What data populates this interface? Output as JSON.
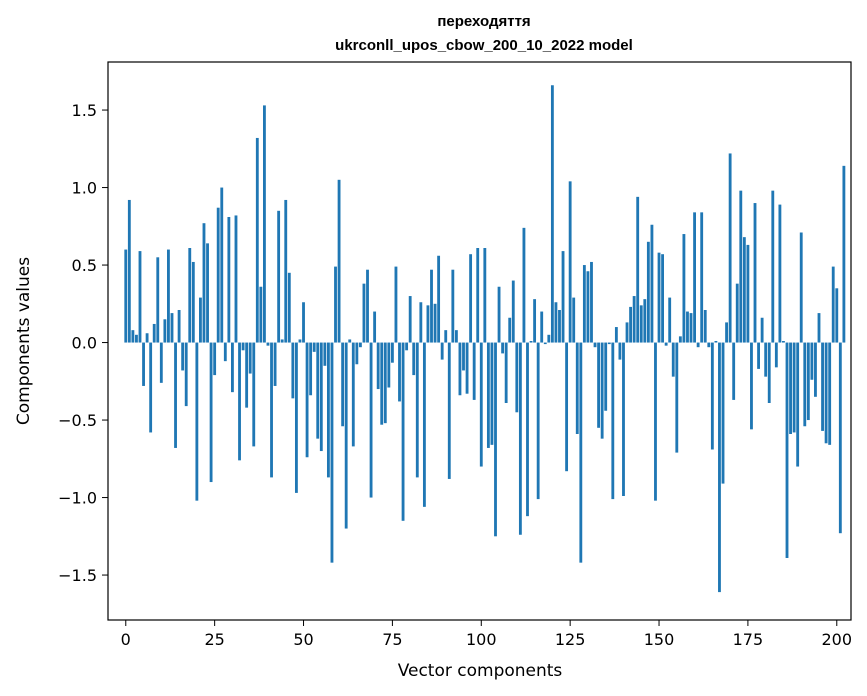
{
  "chart_data": {
    "type": "bar",
    "title_lines": [
      "переходяття",
      "ukrconll_upos_cbow_200_10_2022 model"
    ],
    "xlabel": "Vector components",
    "ylabel": "Components values",
    "xlim": [
      -5,
      204
    ],
    "ylim": [
      -1.79,
      1.81
    ],
    "xticks": [
      0,
      25,
      50,
      75,
      100,
      125,
      150,
      175,
      200
    ],
    "yticks": [
      -1.5,
      -1.0,
      -0.5,
      0.0,
      0.5,
      1.0,
      1.5
    ],
    "ytick_labels": [
      "−1.5",
      "−1.0",
      "−0.5",
      "0.0",
      "0.5",
      "1.0",
      "1.5"
    ],
    "bar_color": "#1f77b4",
    "grid": false,
    "values": [
      0.6,
      0.92,
      0.08,
      0.05,
      0.59,
      -0.28,
      0.06,
      -0.58,
      0.12,
      0.55,
      -0.26,
      0.15,
      0.6,
      0.19,
      -0.68,
      0.21,
      -0.18,
      -0.41,
      0.61,
      0.52,
      -1.02,
      0.29,
      0.77,
      0.64,
      -0.9,
      -0.21,
      0.87,
      1.0,
      -0.12,
      0.81,
      -0.32,
      0.82,
      -0.76,
      -0.05,
      -0.42,
      -0.2,
      -0.67,
      1.32,
      0.36,
      1.53,
      -0.02,
      -0.87,
      -0.28,
      0.85,
      0.02,
      0.92,
      0.45,
      -0.36,
      -0.97,
      0.02,
      0.26,
      -0.74,
      -0.34,
      -0.06,
      -0.62,
      -0.7,
      -0.15,
      -0.87,
      -1.42,
      0.49,
      1.05,
      -0.54,
      -1.2,
      0.02,
      -0.67,
      -0.14,
      -0.03,
      0.38,
      0.47,
      -1.0,
      0.2,
      -0.3,
      -0.53,
      -0.52,
      -0.29,
      -0.13,
      0.49,
      -0.38,
      -1.15,
      -0.05,
      0.3,
      -0.21,
      -0.87,
      0.26,
      -1.06,
      0.24,
      0.47,
      0.25,
      0.56,
      -0.11,
      0.08,
      -0.88,
      0.47,
      0.08,
      -0.34,
      -0.18,
      -0.33,
      0.57,
      -0.37,
      0.61,
      -0.8,
      0.61,
      -0.68,
      -0.66,
      -1.25,
      0.36,
      -0.07,
      -0.39,
      0.16,
      0.4,
      -0.45,
      -1.24,
      0.74,
      -1.12,
      0.01,
      0.28,
      -1.01,
      0.2,
      -0.01,
      0.05,
      1.66,
      0.26,
      0.21,
      0.59,
      -0.83,
      1.04,
      0.29,
      -0.59,
      -1.42,
      0.5,
      0.46,
      0.52,
      -0.03,
      -0.55,
      -0.62,
      -0.44,
      -0.01,
      -1.01,
      0.1,
      -0.11,
      -0.99,
      0.13,
      0.23,
      0.3,
      0.94,
      0.24,
      0.28,
      0.65,
      0.76,
      -1.02,
      0.58,
      0.57,
      -0.02,
      0.29,
      -0.22,
      -0.71,
      0.04,
      0.7,
      0.2,
      0.19,
      0.84,
      -0.03,
      0.84,
      0.21,
      -0.03,
      -0.69,
      0.01,
      -1.61,
      -0.91,
      0.13,
      1.22,
      -0.37,
      0.38,
      0.98,
      0.68,
      0.63,
      -0.56,
      0.9,
      -0.17,
      0.16,
      -0.22,
      -0.39,
      0.98,
      -0.16,
      0.89,
      0.01,
      -1.39,
      -0.59,
      -0.58,
      -0.8,
      0.71,
      -0.54,
      -0.5,
      -0.24,
      -0.35,
      0.19,
      -0.57,
      -0.65,
      -0.66,
      0.49,
      0.35,
      -1.23,
      1.14
    ]
  }
}
